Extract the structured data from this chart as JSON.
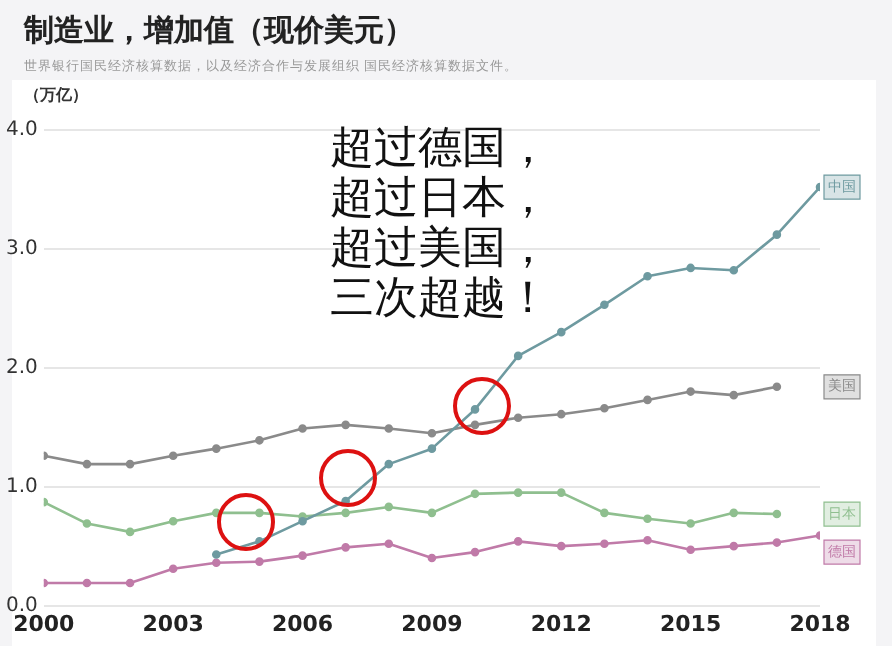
{
  "chart_data": {
    "type": "line",
    "title": "制造业，增加值（现价美元）",
    "subtitle": "世界银行国民经济核算数据，以及经济合作与发展组织 国民经济核算数据文件。",
    "ylabel": "（万亿）",
    "annotations": [
      "超过德国，",
      "超过日本，",
      "超过美国，",
      "三次超越！"
    ],
    "x": [
      2000,
      2001,
      2002,
      2003,
      2004,
      2005,
      2006,
      2007,
      2008,
      2009,
      2010,
      2011,
      2012,
      2013,
      2014,
      2015,
      2016,
      2017,
      2018
    ],
    "xlim": [
      2000,
      2018
    ],
    "xticks": [
      2000,
      2003,
      2006,
      2009,
      2012,
      2015,
      2018
    ],
    "ylim": [
      0,
      4
    ],
    "yticks": [
      {
        "value": 0,
        "label": "0.0"
      },
      {
        "value": 1,
        "label": "1.0"
      },
      {
        "value": 2,
        "label": "2.0"
      },
      {
        "value": 3,
        "label": "3.0"
      },
      {
        "value": 4,
        "label": "4.0"
      }
    ],
    "grid": "y",
    "marker": "circle",
    "line_style": "solid",
    "legend": "right",
    "series": [
      {
        "name": "中国",
        "color": "#6e9aa0",
        "values": [
          null,
          null,
          null,
          null,
          0.43,
          0.54,
          0.71,
          0.88,
          1.19,
          1.32,
          1.65,
          2.1,
          2.3,
          2.53,
          2.77,
          2.84,
          2.82,
          3.12,
          3.52
        ]
      },
      {
        "name": "美国",
        "color": "#8a8a8a",
        "values": [
          1.26,
          1.19,
          1.19,
          1.26,
          1.32,
          1.39,
          1.49,
          1.52,
          1.49,
          1.45,
          1.52,
          1.58,
          1.61,
          1.66,
          1.73,
          1.8,
          1.77,
          1.84,
          null
        ]
      },
      {
        "name": "日本",
        "color": "#8fbf8f",
        "values": [
          0.87,
          0.69,
          0.62,
          0.71,
          0.78,
          0.78,
          0.75,
          0.78,
          0.83,
          0.78,
          0.94,
          0.95,
          0.95,
          0.78,
          0.73,
          0.69,
          0.78,
          0.77,
          null
        ]
      },
      {
        "name": "德国",
        "color": "#c07aa8",
        "values": [
          0.19,
          0.19,
          0.19,
          0.31,
          0.36,
          0.37,
          0.42,
          0.49,
          0.52,
          0.4,
          0.45,
          0.54,
          0.5,
          0.52,
          0.55,
          0.47,
          0.5,
          0.53,
          0.59
        ]
      }
    ]
  }
}
